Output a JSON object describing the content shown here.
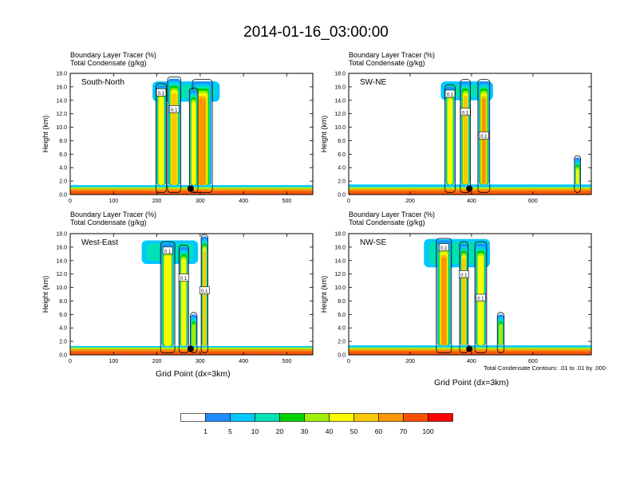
{
  "figure_title": "2014-01-16_03:00:00",
  "x_axis_label": "Grid Point (dx=3km)",
  "y_axis_label": "Height (km)",
  "note": "Total Condensate Contours: .01 to .01 by .000",
  "colors": {
    "shading": [
      "#ffffff",
      "#1e8cff",
      "#00c8ff",
      "#00e1b4",
      "#00d200",
      "#a0f000",
      "#fafa00",
      "#fac800",
      "#fa9600",
      "#fa5000",
      "#fa0000"
    ],
    "contour": "#000000",
    "marker": "#000000"
  },
  "colorbar": {
    "labels": [
      "1",
      "5",
      "10",
      "20",
      "30",
      "40",
      "50",
      "60",
      "70",
      "100"
    ]
  },
  "chart_data": [
    {
      "type": "heatmap",
      "title": "South-North",
      "line1": "Boundary Layer Tracer   (%)",
      "line2": "Total Condensate   (g/kg)",
      "xlabel": "",
      "ylabel": "Height (km)",
      "xlim": [
        0,
        560
      ],
      "ylim": [
        0,
        18
      ],
      "xticks": [
        "0",
        "100",
        "200",
        "300",
        "400",
        "500"
      ],
      "yticks": [
        "0.0",
        "2.0",
        "4.0",
        "6.0",
        "8.0",
        "10.0",
        "12.0",
        "14.0",
        "16.0",
        "18.0"
      ],
      "marker_x": 278,
      "contour_labels": [
        "0.1",
        "0.1"
      ],
      "plumes": [
        {
          "x": 210,
          "width": 22,
          "top": 16.2,
          "peak": 45
        },
        {
          "x": 240,
          "width": 28,
          "top": 17.2,
          "peak": 55
        },
        {
          "x": 305,
          "width": 42,
          "top": 16.8,
          "peak": 70
        },
        {
          "x": 285,
          "width": 18,
          "top": 15.5,
          "peak": 50
        }
      ],
      "anvil": {
        "x1": 190,
        "x2": 345,
        "y1": 13.8,
        "y2": 16.8
      },
      "boundary_layer_top": 1.4
    },
    {
      "type": "heatmap",
      "title": "SW-NE",
      "line1": "Boundary Layer Tracer   (%)",
      "line2": "Total Condensate   (g/kg)",
      "xlabel": "",
      "ylabel": "Height (km)",
      "xlim": [
        0,
        790
      ],
      "ylim": [
        0,
        18
      ],
      "xticks": [
        "0",
        "200",
        "400",
        "600"
      ],
      "yticks": [
        "0.0",
        "2.0",
        "4.0",
        "6.0",
        "8.0",
        "10.0",
        "12.0",
        "14.0",
        "16.0",
        "18.0"
      ],
      "marker_x": 393,
      "contour_labels": [
        "0.1",
        "0.1",
        "0.1",
        "0.1"
      ],
      "plumes": [
        {
          "x": 330,
          "width": 30,
          "top": 16.0,
          "peak": 45
        },
        {
          "x": 380,
          "width": 30,
          "top": 16.8,
          "peak": 55
        },
        {
          "x": 440,
          "width": 35,
          "top": 16.8,
          "peak": 65
        },
        {
          "x": 745,
          "width": 18,
          "top": 5.5,
          "peak": 45
        }
      ],
      "anvil": {
        "x1": 300,
        "x2": 470,
        "y1": 14.0,
        "y2": 16.8
      },
      "boundary_layer_top": 1.5
    },
    {
      "type": "heatmap",
      "title": "West-East",
      "line1": "Boundary Layer Tracer   (%)",
      "line2": "Total Condensate   (g/kg)",
      "xlabel": "Grid Point (dx=3km)",
      "ylabel": "Height (km)",
      "xlim": [
        0,
        560
      ],
      "ylim": [
        0,
        18
      ],
      "xticks": [
        "0",
        "100",
        "200",
        "300",
        "400",
        "500"
      ],
      "yticks": [
        "0.0",
        "2.0",
        "4.0",
        "6.0",
        "8.0",
        "10.0",
        "12.0",
        "14.0",
        "16.0",
        "18.0"
      ],
      "marker_x": 278,
      "contour_labels": [
        "0.1",
        "0.1",
        "0.1"
      ],
      "plumes": [
        {
          "x": 225,
          "width": 30,
          "top": 16.5,
          "peak": 50
        },
        {
          "x": 262,
          "width": 20,
          "top": 16.0,
          "peak": 45
        },
        {
          "x": 310,
          "width": 14,
          "top": 17.6,
          "peak": 60
        },
        {
          "x": 285,
          "width": 14,
          "top": 6.0,
          "peak": 40
        }
      ],
      "anvil": {
        "x1": 165,
        "x2": 295,
        "y1": 13.5,
        "y2": 17.0
      },
      "boundary_layer_top": 1.3
    },
    {
      "type": "heatmap",
      "title": "NW-SE",
      "line1": "Boundary Layer Tracer   (%)",
      "line2": "Total Condensate   (g/kg)",
      "xlabel": "Grid Point (dx=3km)",
      "ylabel": "Height (km)",
      "xlim": [
        0,
        790
      ],
      "ylim": [
        0,
        18
      ],
      "xticks": [
        "0",
        "200",
        "400",
        "600"
      ],
      "yticks": [
        "0.0",
        "2.0",
        "4.0",
        "6.0",
        "8.0",
        "10.0",
        "12.0",
        "14.0",
        "16.0",
        "18.0"
      ],
      "marker_x": 393,
      "contour_labels": [
        "0.1",
        "0.1",
        "0.1"
      ],
      "plumes": [
        {
          "x": 310,
          "width": 45,
          "top": 17.0,
          "peak": 65
        },
        {
          "x": 375,
          "width": 25,
          "top": 16.5,
          "peak": 55
        },
        {
          "x": 430,
          "width": 35,
          "top": 16.5,
          "peak": 50
        },
        {
          "x": 495,
          "width": 20,
          "top": 6.0,
          "peak": 40
        }
      ],
      "anvil": {
        "x1": 245,
        "x2": 460,
        "y1": 13.0,
        "y2": 17.2
      },
      "boundary_layer_top": 1.4
    }
  ]
}
